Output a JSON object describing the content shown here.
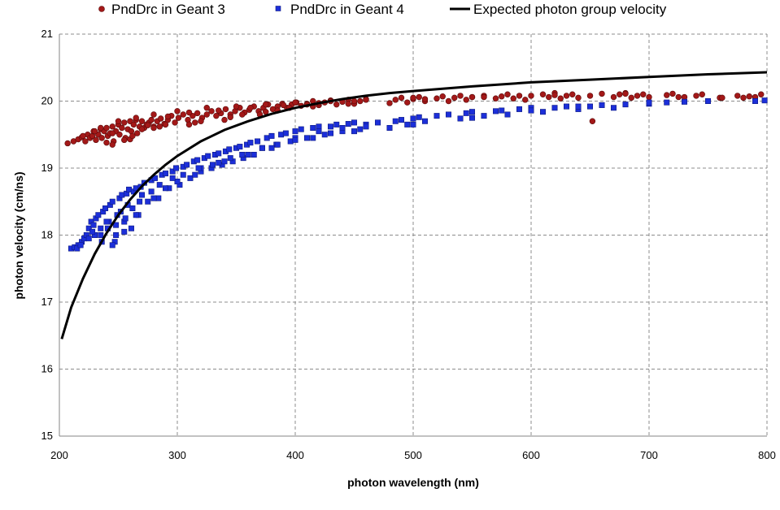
{
  "chart_data": {
    "type": "scatter",
    "title": "",
    "xlabel": "photon wavelength (nm)",
    "ylabel": "photon velocity (cm/ns)",
    "xlim": [
      200,
      800
    ],
    "ylim": [
      15,
      21
    ],
    "x_ticks": [
      200,
      300,
      400,
      500,
      600,
      700,
      800
    ],
    "y_ticks": [
      15,
      16,
      17,
      18,
      19,
      20,
      21
    ],
    "grid": true,
    "legend_position": "top",
    "series": [
      {
        "name": "PndDrc in Geant 3",
        "kind": "scatter",
        "marker": "circle",
        "color": "#a31818",
        "x": [
          207,
          212,
          216,
          219,
          222,
          224,
          226,
          228,
          229,
          231,
          233,
          235,
          236,
          238,
          240,
          241,
          243,
          245,
          246,
          248,
          250,
          251,
          253,
          255,
          256,
          258,
          260,
          261,
          263,
          265,
          266,
          268,
          270,
          272,
          274,
          276,
          278,
          280,
          283,
          286,
          289,
          292,
          295,
          298,
          301,
          305,
          309,
          313,
          317,
          321,
          325,
          329,
          333,
          337,
          341,
          345,
          349,
          353,
          357,
          361,
          365,
          369,
          373,
          377,
          381,
          385,
          389,
          393,
          397,
          401,
          405,
          410,
          415,
          420,
          425,
          430,
          435,
          440,
          445,
          450,
          455,
          460,
          480,
          485,
          490,
          495,
          500,
          505,
          510,
          520,
          525,
          530,
          535,
          540,
          545,
          550,
          560,
          570,
          575,
          580,
          585,
          590,
          595,
          610,
          615,
          620,
          625,
          630,
          635,
          640,
          650,
          660,
          670,
          675,
          680,
          685,
          690,
          695,
          700,
          715,
          720,
          730,
          740,
          745,
          760,
          775,
          780,
          785,
          795,
          220,
          235,
          250,
          265,
          280,
          300,
          325,
          350,
          375,
          400,
          430,
          460,
          500,
          550,
          600,
          240,
          260,
          280,
          310,
          340,
          370,
          395,
          410,
          245,
          270,
          290,
          320,
          355,
          385,
          415,
          445,
          255,
          285,
          315,
          345,
          375,
          652,
          230,
          245,
          262,
          275,
          292,
          310,
          335,
          362,
          390,
          420,
          450,
          510,
          560,
          620,
          680,
          725,
          762,
          790
        ],
        "y": [
          19.37,
          19.4,
          19.43,
          19.46,
          19.4,
          19.5,
          19.45,
          19.48,
          19.55,
          19.42,
          19.5,
          19.58,
          19.45,
          19.55,
          19.6,
          19.48,
          19.52,
          19.62,
          19.4,
          19.55,
          19.65,
          19.5,
          19.6,
          19.68,
          19.45,
          19.58,
          19.7,
          19.55,
          19.65,
          19.72,
          19.52,
          19.62,
          19.7,
          19.6,
          19.65,
          19.68,
          19.72,
          19.62,
          19.7,
          19.74,
          19.66,
          19.72,
          19.78,
          19.68,
          19.75,
          19.8,
          19.72,
          19.78,
          19.82,
          19.75,
          19.8,
          19.85,
          19.78,
          19.82,
          19.88,
          19.8,
          19.85,
          19.9,
          19.83,
          19.87,
          19.92,
          19.85,
          19.9,
          19.95,
          19.88,
          19.92,
          19.96,
          19.9,
          19.95,
          19.98,
          19.93,
          19.96,
          20.0,
          19.94,
          19.98,
          20.01,
          19.95,
          19.99,
          20.02,
          19.96,
          20.0,
          20.03,
          19.97,
          20.02,
          20.05,
          19.98,
          20.03,
          20.06,
          20.0,
          20.04,
          20.07,
          20.0,
          20.05,
          20.08,
          20.02,
          20.06,
          20.08,
          20.04,
          20.07,
          20.1,
          20.04,
          20.08,
          20.02,
          20.1,
          20.06,
          20.12,
          20.04,
          20.08,
          20.1,
          20.05,
          20.08,
          20.11,
          20.06,
          20.1,
          20.12,
          20.05,
          20.08,
          20.1,
          20.06,
          20.09,
          20.11,
          20.06,
          20.08,
          20.1,
          20.05,
          20.08,
          20.05,
          20.07,
          20.1,
          19.48,
          19.6,
          19.7,
          19.75,
          19.8,
          19.85,
          19.9,
          19.92,
          19.95,
          19.98,
          20.0,
          20.02,
          20.05,
          20.06,
          20.08,
          19.38,
          19.43,
          19.6,
          19.65,
          19.72,
          19.8,
          19.9,
          19.95,
          19.52,
          19.58,
          19.65,
          19.7,
          19.8,
          19.86,
          19.92,
          19.96,
          19.42,
          19.62,
          19.68,
          19.76,
          19.84,
          19.7,
          19.55,
          19.35,
          19.48,
          19.64,
          19.77,
          19.83,
          19.86,
          19.9,
          19.94,
          19.97,
          20.0,
          20.03,
          20.06,
          20.09,
          20.11,
          20.06,
          20.05,
          20.06
        ]
      },
      {
        "name": "PndDrc in Geant 4",
        "kind": "scatter",
        "marker": "square",
        "color": "#1c2fd9",
        "x": [
          210,
          213,
          216,
          219,
          221,
          223,
          225,
          227,
          229,
          231,
          233,
          235,
          237,
          239,
          241,
          243,
          245,
          247,
          249,
          251,
          253,
          255,
          257,
          259,
          261,
          263,
          265,
          267,
          269,
          272,
          275,
          278,
          281,
          284,
          287,
          290,
          293,
          296,
          299,
          302,
          305,
          308,
          311,
          314,
          317,
          320,
          323,
          326,
          329,
          332,
          335,
          338,
          341,
          344,
          347,
          350,
          353,
          356,
          359,
          362,
          365,
          368,
          372,
          376,
          380,
          384,
          388,
          392,
          396,
          400,
          405,
          410,
          415,
          420,
          425,
          430,
          435,
          440,
          445,
          450,
          455,
          460,
          470,
          480,
          485,
          490,
          495,
          500,
          505,
          510,
          520,
          530,
          540,
          545,
          550,
          560,
          570,
          575,
          580,
          590,
          600,
          610,
          620,
          630,
          640,
          650,
          660,
          670,
          680,
          700,
          715,
          730,
          750,
          790,
          798,
          215,
          225,
          235,
          245,
          255,
          265,
          280,
          300,
          320,
          340,
          360,
          380,
          400,
          420,
          440,
          460,
          500,
          550,
          600,
          640,
          700,
          230,
          242,
          258,
          270,
          285,
          305,
          330,
          355,
          385,
          415,
          450,
          236,
          248,
          262,
          278,
          296,
          318,
          345,
          372,
          400,
          430,
          218,
          228,
          240,
          252,
          268,
          290,
          315,
          335,
          248,
          256
        ],
        "y": [
          17.8,
          17.82,
          17.85,
          17.9,
          17.95,
          18.0,
          18.1,
          18.2,
          18.15,
          18.25,
          18.3,
          18.0,
          18.35,
          18.4,
          18.1,
          18.45,
          18.5,
          17.9,
          18.3,
          18.55,
          18.6,
          18.2,
          18.62,
          18.68,
          18.1,
          18.65,
          18.7,
          18.3,
          18.72,
          18.78,
          18.5,
          18.82,
          18.85,
          18.55,
          18.9,
          18.92,
          18.7,
          18.95,
          19.0,
          18.75,
          19.02,
          19.05,
          18.85,
          19.1,
          19.12,
          18.95,
          19.15,
          19.18,
          19.0,
          19.2,
          19.22,
          19.05,
          19.25,
          19.28,
          19.1,
          19.3,
          19.32,
          19.15,
          19.35,
          19.38,
          19.2,
          19.4,
          19.3,
          19.45,
          19.48,
          19.35,
          19.5,
          19.52,
          19.4,
          19.55,
          19.58,
          19.45,
          19.6,
          19.62,
          19.5,
          19.62,
          19.65,
          19.55,
          19.66,
          19.68,
          19.58,
          19.65,
          19.68,
          19.6,
          19.7,
          19.72,
          19.65,
          19.74,
          19.76,
          19.7,
          19.78,
          19.8,
          19.74,
          19.82,
          19.84,
          19.78,
          19.85,
          19.86,
          19.8,
          19.88,
          19.9,
          19.84,
          19.9,
          19.92,
          19.88,
          19.92,
          19.94,
          19.9,
          19.95,
          19.96,
          19.98,
          19.99,
          20.0,
          20.0,
          20.01,
          17.8,
          17.95,
          18.1,
          17.85,
          18.05,
          18.3,
          18.55,
          18.8,
          19.0,
          19.1,
          19.2,
          19.3,
          19.45,
          19.55,
          19.6,
          19.62,
          19.65,
          19.75,
          19.86,
          19.92,
          19.98,
          18.0,
          18.2,
          18.45,
          18.6,
          18.75,
          18.9,
          19.05,
          19.2,
          19.35,
          19.45,
          19.55,
          17.9,
          18.15,
          18.4,
          18.65,
          18.85,
          19.0,
          19.15,
          19.3,
          19.42,
          19.52,
          17.85,
          18.05,
          18.2,
          18.35,
          18.5,
          18.7,
          18.9,
          19.08,
          18.0,
          18.25
        ]
      },
      {
        "name": "Expected photon group velocity",
        "kind": "line",
        "color": "#000000",
        "x": [
          202,
          210,
          220,
          230,
          240,
          250,
          260,
          270,
          280,
          290,
          300,
          320,
          340,
          360,
          380,
          400,
          420,
          440,
          460,
          480,
          500,
          550,
          600,
          650,
          700,
          750,
          800
        ],
        "y": [
          16.45,
          16.92,
          17.35,
          17.72,
          18.03,
          18.3,
          18.53,
          18.73,
          18.9,
          19.05,
          19.18,
          19.4,
          19.57,
          19.7,
          19.81,
          19.9,
          19.97,
          20.03,
          20.08,
          20.12,
          20.15,
          20.22,
          20.28,
          20.32,
          20.36,
          20.4,
          20.43
        ]
      }
    ]
  }
}
